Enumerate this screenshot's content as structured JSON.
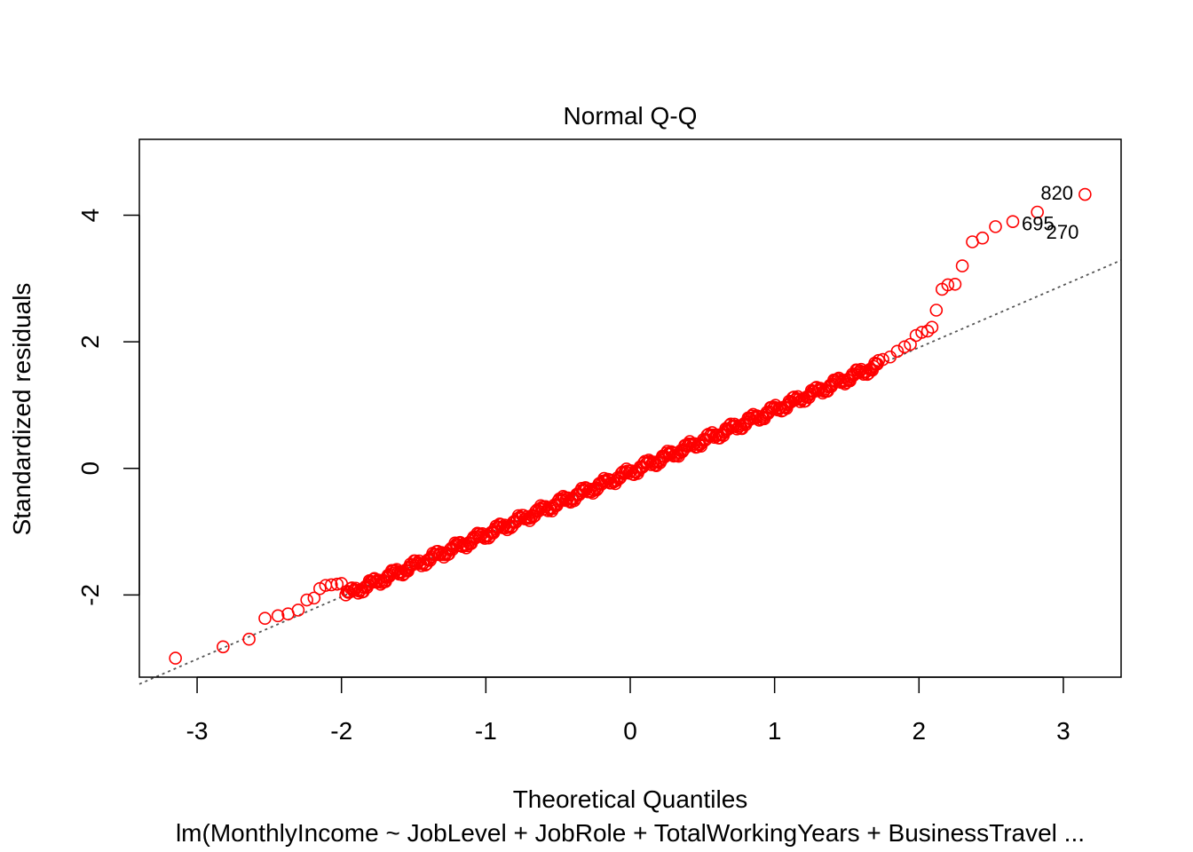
{
  "chart_data": {
    "type": "scatter",
    "title": "Normal Q-Q",
    "xlabel": "Theoretical Quantiles",
    "ylabel": "Standardized residuals",
    "caption": "lm(MonthlyIncome ~ JobLevel + JobRole + TotalWorkingYears + BusinessTravel  ...",
    "xlim": [
      -3.4,
      3.4
    ],
    "ylim": [
      -3.3,
      5.2
    ],
    "x_ticks": [
      -3,
      -2,
      -1,
      0,
      1,
      2,
      3
    ],
    "y_ticks": [
      -2,
      0,
      2,
      4
    ],
    "grid": false,
    "colors": {
      "points": "#ff0000",
      "reference_line": "#555555",
      "axes": "#000000"
    },
    "reference_line": {
      "intercept": -0.06,
      "slope": 0.985
    },
    "low_tail": [
      [
        -3.15,
        -3.0
      ],
      [
        -2.82,
        -2.82
      ],
      [
        -2.64,
        -2.7
      ],
      [
        -2.53,
        -2.37
      ],
      [
        -2.44,
        -2.33
      ],
      [
        -2.37,
        -2.3
      ],
      [
        -2.3,
        -2.24
      ],
      [
        -2.24,
        -2.08
      ],
      [
        -2.19,
        -2.05
      ],
      [
        -2.15,
        -1.9
      ],
      [
        -2.11,
        -1.85
      ],
      [
        -2.07,
        -1.84
      ],
      [
        -2.03,
        -1.83
      ],
      [
        -2.0,
        -1.82
      ]
    ],
    "high_tail": [
      [
        1.75,
        1.72
      ],
      [
        1.8,
        1.76
      ],
      [
        1.85,
        1.85
      ],
      [
        1.9,
        1.92
      ],
      [
        1.94,
        1.96
      ],
      [
        1.98,
        2.1
      ],
      [
        2.02,
        2.15
      ],
      [
        2.06,
        2.17
      ],
      [
        2.09,
        2.23
      ],
      [
        2.12,
        2.5
      ],
      [
        2.16,
        2.83
      ],
      [
        2.2,
        2.9
      ],
      [
        2.25,
        2.91
      ],
      [
        2.3,
        3.2
      ],
      [
        2.37,
        3.58
      ],
      [
        2.44,
        3.64
      ],
      [
        2.53,
        3.82
      ],
      [
        2.65,
        3.9
      ],
      [
        2.82,
        4.05
      ],
      [
        3.15,
        4.33
      ]
    ],
    "bulk_range": [
      -1.97,
      1.72
    ],
    "bulk_points": 430,
    "labeled_points": [
      {
        "label": "820",
        "x": 3.15,
        "y": 4.33
      },
      {
        "label": "270",
        "x": 2.82,
        "y": 4.05
      },
      {
        "label": "695",
        "x": 2.65,
        "y": 3.9
      }
    ]
  }
}
